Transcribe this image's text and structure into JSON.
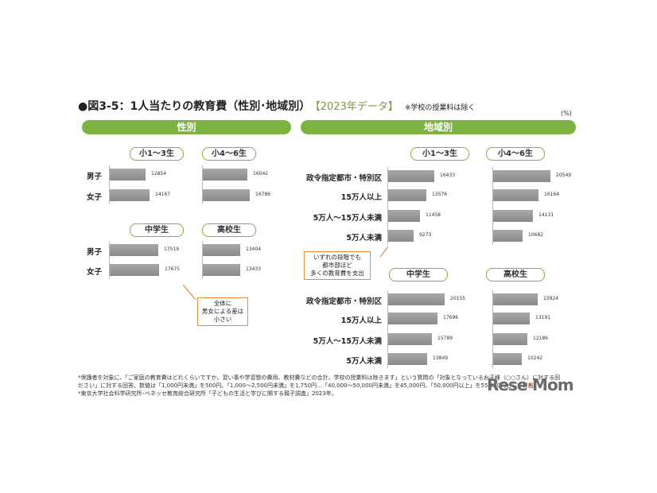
{
  "title": {
    "main": "●図3-5：1人当たりの教育費（性別･地域別）",
    "year": "【2023年データ】",
    "note": "※学校の授業料は除く"
  },
  "unit": "(%)",
  "sections": {
    "gender": "性別",
    "region": "地域別"
  },
  "callouts": {
    "gender": "全体に\n男女による差は\n小さい",
    "region": "いずれの段階でも\n都市部ほど\n多くの教育費を支出"
  },
  "footnotes": [
    "*保護者を対象に、「ご家庭の教育費はどれくらいですか。習い事や学習塾の費用、教材費などの合計。学校の授業料は除きます」という質問の「対象となっているお子様（○○さん）に対する回",
    "ださい」に対する回答。数値は「1,000円未満」を500円、「1,000～2,500円未満」を1,750円…「40,000～50,000円未満」を45,000円、「50,000円以上」を55,000円として算出。",
    "*東京大学社会科学研究所･ベネッセ教育総合研究所「子どもの生活と学びに関する親子調査」2023年。"
  ],
  "watermark": {
    "text1": "Rese",
    "text2": "Mom"
  },
  "chart_data": [
    {
      "type": "bar",
      "title": "小1～3生",
      "categories": [
        "男子",
        "女子"
      ],
      "values": [
        12854,
        14167
      ]
    },
    {
      "type": "bar",
      "title": "小4～6生",
      "categories": [
        "男子",
        "女子"
      ],
      "values": [
        16042,
        16786
      ]
    },
    {
      "type": "bar",
      "title": "中学生",
      "categories": [
        "男子",
        "女子"
      ],
      "values": [
        17519,
        17675
      ]
    },
    {
      "type": "bar",
      "title": "高校生",
      "categories": [
        "男子",
        "女子"
      ],
      "values": [
        13404,
        13433
      ]
    },
    {
      "type": "bar",
      "title": "小1～3生",
      "categories": [
        "政令指定都市・特別区",
        "15万人以上",
        "5万人～15万人未満",
        "5万人未満"
      ],
      "values": [
        16433,
        13576,
        11458,
        9273
      ]
    },
    {
      "type": "bar",
      "title": "小4～6生",
      "categories": [
        "政令指定都市・特別区",
        "15万人以上",
        "5万人～15万人未満",
        "5万人未満"
      ],
      "values": [
        20549,
        16164,
        14131,
        10682
      ]
    },
    {
      "type": "bar",
      "title": "中学生",
      "categories": [
        "政令指定都市・特別区",
        "15万人以上",
        "5万人～15万人未満",
        "5万人未満"
      ],
      "values": [
        20155,
        17696,
        15789,
        13849
      ]
    },
    {
      "type": "bar",
      "title": "高校生",
      "categories": [
        "政令指定都市・特別区",
        "15万人以上",
        "5万人～15万人未満",
        "5万人未満"
      ],
      "values": [
        15924,
        13191,
        12186,
        10242
      ]
    }
  ]
}
